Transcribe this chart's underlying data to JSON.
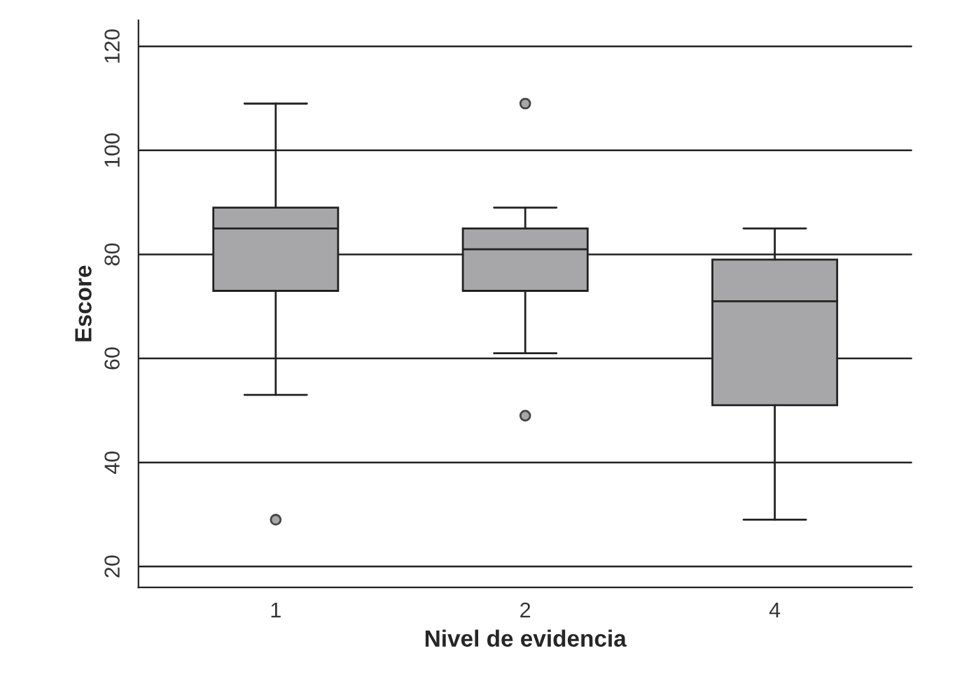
{
  "chart_data": {
    "type": "box",
    "xlabel": "Nivel de evidencia",
    "ylabel": "Escore",
    "categories": [
      "1",
      "2",
      "4"
    ],
    "boxes": [
      {
        "low": 53,
        "q1": 73,
        "median": 85,
        "q3": 89,
        "high": 109,
        "outliers": [
          29
        ]
      },
      {
        "low": 61,
        "q1": 73,
        "median": 81,
        "q3": 85,
        "high": 89,
        "outliers": [
          109,
          49
        ]
      },
      {
        "low": 29,
        "q1": 51,
        "median": 71,
        "q3": 79,
        "high": 85
      }
    ],
    "color": "#a7a7a9",
    "ylim": [
      16,
      125
    ],
    "yticks": [
      20,
      40,
      60,
      80,
      100,
      120
    ],
    "grid": "y"
  }
}
